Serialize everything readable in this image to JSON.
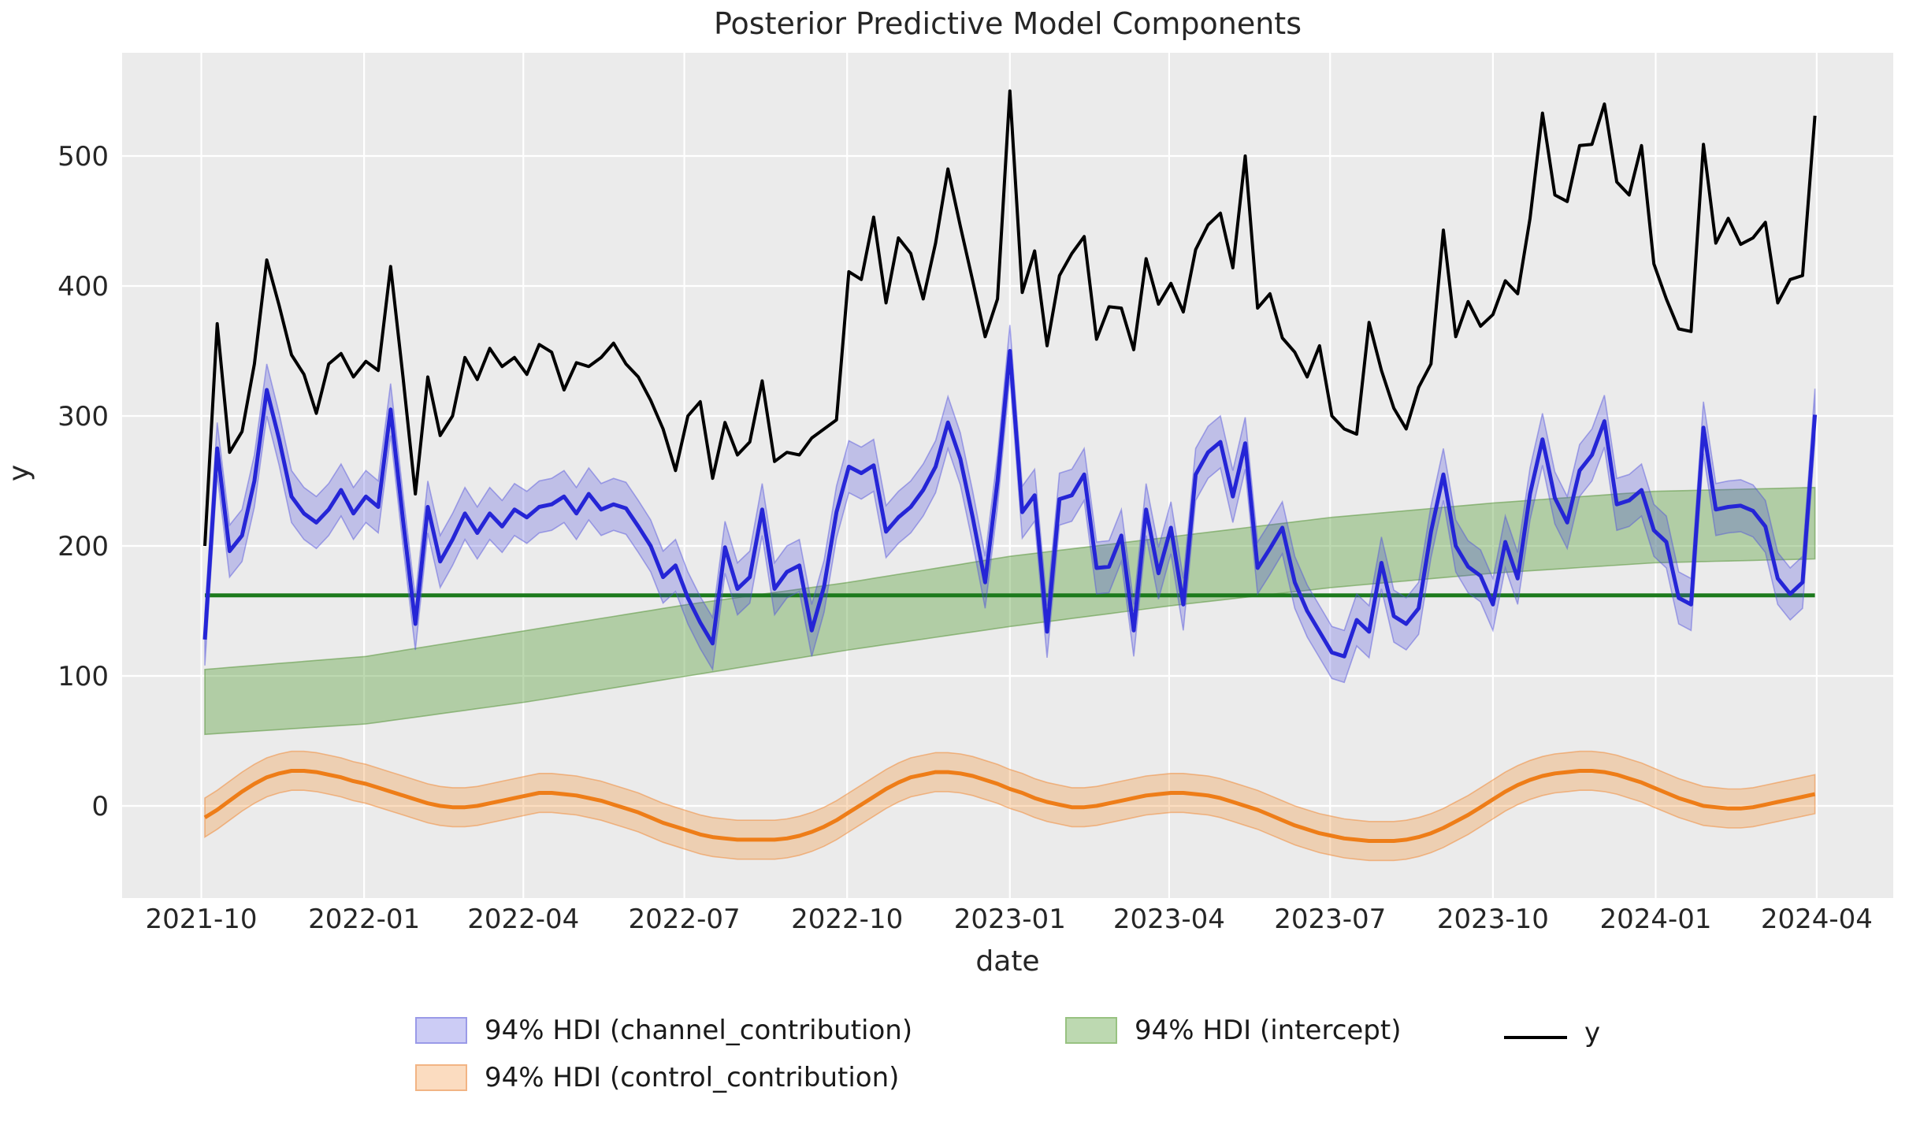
{
  "title": "Posterior Predictive Model Components",
  "axes": {
    "xlabel": "date",
    "ylabel": "y",
    "x_ticks": [
      "2021-10",
      "2022-01",
      "2022-04",
      "2022-07",
      "2022-10",
      "2023-01",
      "2023-04",
      "2023-07",
      "2023-10",
      "2024-01",
      "2024-04"
    ],
    "y_ticks": [
      "0",
      "100",
      "200",
      "300",
      "400",
      "500"
    ]
  },
  "legend": {
    "items": [
      {
        "label": "94% HDI (channel_contribution)",
        "swatch": "band",
        "fill": "#ccccf5",
        "border": "#9a9ae8"
      },
      {
        "label": "94% HDI (intercept)",
        "swatch": "band",
        "fill": "#bdd9b1",
        "border": "#98c281"
      },
      {
        "label": "y",
        "swatch": "line",
        "fill": "#000000",
        "border": "#000000"
      },
      {
        "label": "94% HDI (control_contribution)",
        "swatch": "band",
        "fill": "#fbdcc0",
        "border": "#f2b484"
      }
    ]
  },
  "colors": {
    "figure_background": "#ffffff",
    "plot_background": "#ebebeb",
    "gridline": "#ffffff",
    "tick_label": "#262626",
    "y_line": "#000000",
    "channel_line": "#2525d6",
    "channel_band": "rgba(60,60,220,0.25)",
    "channel_band_edge": "rgba(80,80,220,0.45)",
    "control_line": "#ee7d18",
    "control_band": "rgba(244,150,60,0.32)",
    "control_band_edge": "rgba(240,140,60,0.55)",
    "intercept_line": "#1c7a1c",
    "intercept_band": "rgba(90,160,60,0.40)",
    "intercept_band_edge": "rgba(90,150,60,0.55)"
  },
  "chart_data": {
    "type": "line",
    "title": "Posterior Predictive Model Components",
    "xlabel": "date",
    "ylabel": "y",
    "x_start_date": "2021-10-03",
    "x_freq_days": 7,
    "n_points": 131,
    "x_tick_dates": [
      "2021-10-01",
      "2022-01-01",
      "2022-04-01",
      "2022-07-01",
      "2022-10-01",
      "2023-01-01",
      "2023-04-01",
      "2023-07-01",
      "2023-10-01",
      "2024-01-01",
      "2024-04-01"
    ],
    "x_tick_labels": [
      "2021-10",
      "2022-01",
      "2022-04",
      "2022-07",
      "2022-10",
      "2023-01",
      "2023-04",
      "2023-07",
      "2023-10",
      "2024-01",
      "2024-04"
    ],
    "ylim": [
      -71,
      579
    ],
    "y_gridlines": [
      0,
      100,
      200,
      300,
      400,
      500
    ],
    "grid": true,
    "legend_position": "below",
    "series": {
      "y": [
        200,
        371,
        272,
        288,
        340,
        420,
        385,
        347,
        332,
        302,
        340,
        348,
        330,
        342,
        335,
        415,
        330,
        240,
        330,
        285,
        300,
        345,
        328,
        352,
        338,
        345,
        332,
        355,
        349,
        320,
        341,
        338,
        345,
        356,
        340,
        330,
        312,
        290,
        258,
        300,
        311,
        252,
        295,
        270,
        280,
        327,
        265,
        272,
        270,
        283,
        290,
        297,
        411,
        405,
        453,
        387,
        437,
        425,
        390,
        433,
        490,
        446,
        404,
        361,
        390,
        550,
        395,
        427,
        354,
        408,
        425,
        438,
        359,
        384,
        383,
        351,
        421,
        386,
        402,
        380,
        428,
        447,
        456,
        414,
        500,
        383,
        394,
        360,
        349,
        330,
        354,
        300,
        290,
        286,
        372,
        335,
        306,
        290,
        322,
        340,
        443,
        361,
        388,
        369,
        378,
        404,
        394,
        452,
        533,
        470,
        465,
        508,
        509,
        540,
        480,
        470,
        508,
        417,
        390,
        367,
        365,
        509,
        433,
        452,
        432,
        437,
        449,
        387,
        405,
        408,
        531
      ],
      "channel_contribution_mean": [
        128,
        275,
        196,
        208,
        250,
        320,
        282,
        238,
        225,
        218,
        228,
        243,
        225,
        238,
        230,
        305,
        220,
        140,
        230,
        188,
        205,
        225,
        210,
        225,
        215,
        228,
        222,
        230,
        232,
        238,
        225,
        240,
        228,
        232,
        229,
        215,
        200,
        176,
        185,
        160,
        141,
        125,
        199,
        167,
        176,
        228,
        167,
        180,
        185,
        135,
        169,
        226,
        261,
        256,
        262,
        211,
        222,
        230,
        243,
        261,
        295,
        267,
        222,
        172,
        250,
        350,
        226,
        239,
        134,
        236,
        239,
        255,
        183,
        184,
        208,
        135,
        228,
        179,
        214,
        155,
        255,
        272,
        280,
        238,
        279,
        183,
        198,
        214,
        172,
        150,
        134,
        118,
        115,
        143,
        134,
        187,
        146,
        140,
        152,
        211,
        255,
        200,
        184,
        177,
        155,
        203,
        175,
        240,
        282,
        237,
        218,
        258,
        270,
        296,
        232,
        235,
        243,
        212,
        203,
        160,
        155,
        291,
        228,
        230,
        231,
        227,
        215,
        175,
        163,
        172,
        301
      ],
      "channel_hdi_halfwidth": 20,
      "control_contribution_mean": [
        -9,
        -3,
        4,
        11,
        17,
        22,
        25,
        27,
        27,
        26,
        24,
        22,
        19,
        17,
        14,
        11,
        8,
        5,
        2,
        0,
        -1,
        -1,
        0,
        2,
        4,
        6,
        8,
        10,
        10,
        9,
        8,
        6,
        4,
        1,
        -2,
        -5,
        -9,
        -13,
        -16,
        -19,
        -22,
        -24,
        -25,
        -26,
        -26,
        -26,
        -26,
        -25,
        -23,
        -20,
        -16,
        -11,
        -5,
        1,
        7,
        13,
        18,
        22,
        24,
        26,
        26,
        25,
        23,
        20,
        17,
        13,
        10,
        6,
        3,
        1,
        -1,
        -1,
        0,
        2,
        4,
        6,
        8,
        9,
        10,
        10,
        9,
        8,
        6,
        3,
        0,
        -3,
        -7,
        -11,
        -15,
        -18,
        -21,
        -23,
        -25,
        -26,
        -27,
        -27,
        -27,
        -26,
        -24,
        -21,
        -17,
        -12,
        -7,
        -1,
        5,
        11,
        16,
        20,
        23,
        25,
        26,
        27,
        27,
        26,
        24,
        21,
        18,
        14,
        10,
        6,
        3,
        0,
        -1,
        -2,
        -2,
        -1,
        1,
        3,
        5,
        7,
        9
      ],
      "control_hdi_halfwidth": 15,
      "intercept_mean_line": 162,
      "intercept_hdi_knots": {
        "week": [
          0,
          13,
          26,
          39,
          52,
          65,
          78,
          91,
          104,
          117,
          130
        ],
        "lo": [
          55,
          63,
          80,
          100,
          120,
          138,
          154,
          168,
          179,
          187,
          190
        ],
        "hi": [
          105,
          115,
          135,
          155,
          172,
          192,
          207,
          222,
          233,
          242,
          245
        ]
      }
    }
  }
}
